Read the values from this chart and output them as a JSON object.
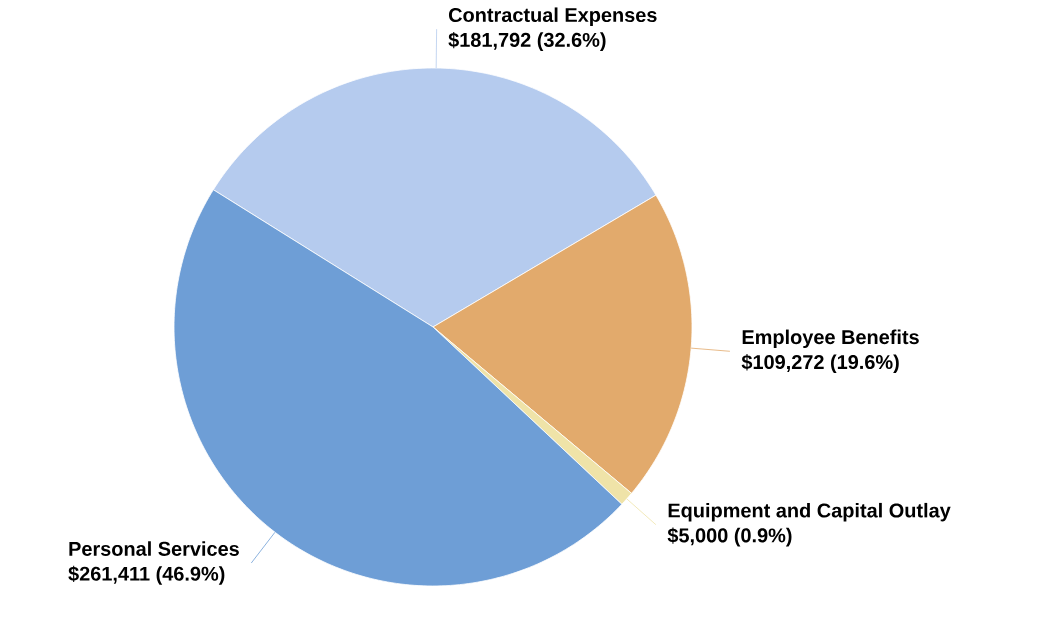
{
  "chart_data": {
    "type": "pie",
    "categories": [
      "Contractual Expenses",
      "Employee Benefits",
      "Equipment and Capital Outlay",
      "Personal Services"
    ],
    "values": [
      181792,
      109272,
      5000,
      261411
    ],
    "value_labels": [
      "$181,792 (32.6%)",
      "$109,272 (19.6%)",
      "$5,000 (0.9%)",
      "$261,411 (46.9%)"
    ],
    "colors": [
      "#b5cbee",
      "#e2aa6c",
      "#efe3a8",
      "#6e9ed6"
    ]
  }
}
